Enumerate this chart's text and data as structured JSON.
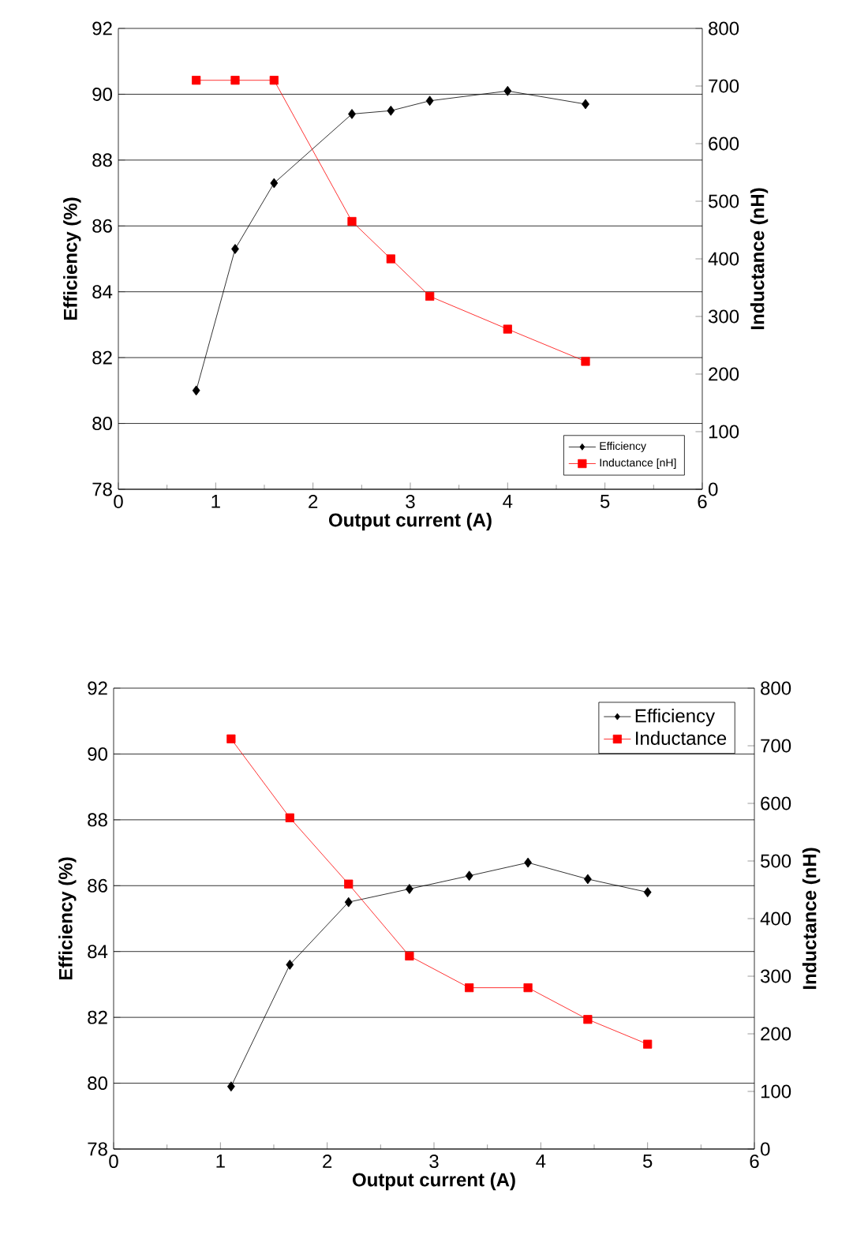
{
  "chart_data": [
    {
      "type": "line",
      "xlabel": "Output current (A)",
      "ylabel": "Efficiency (%)",
      "y2label": "Inductance (nH)",
      "xlim": [
        0,
        6
      ],
      "xticks": [
        0,
        1,
        2,
        3,
        4,
        5,
        6
      ],
      "ylim": [
        78,
        92
      ],
      "yticks": [
        78,
        80,
        82,
        84,
        86,
        88,
        90,
        92
      ],
      "y2lim": [
        0,
        800
      ],
      "y2ticks": [
        0,
        100,
        200,
        300,
        400,
        500,
        600,
        700,
        800
      ],
      "grid": "y",
      "legend": "bottom right",
      "series": [
        {
          "name": "Efficiency",
          "color": "#000000",
          "marker": "diamond",
          "x": [
            0.8,
            1.2,
            1.6,
            2.4,
            2.8,
            3.2,
            4.0,
            4.8
          ],
          "values": [
            81.0,
            85.3,
            87.3,
            89.4,
            89.5,
            89.8,
            90.1,
            89.7
          ]
        },
        {
          "name": "Inductance [nH]",
          "color": "#ff0000",
          "marker": "square",
          "axis": "y2",
          "x": [
            0.8,
            1.2,
            1.6,
            2.4,
            2.8,
            3.2,
            4.0,
            4.8
          ],
          "values": [
            710,
            710,
            710,
            465,
            400,
            335,
            278,
            222
          ]
        }
      ]
    },
    {
      "type": "line",
      "xlabel": "Output current (A)",
      "ylabel": "Efficiency (%)",
      "y2label": "Inductance (nH)",
      "xlim": [
        0,
        6
      ],
      "xticks": [
        0,
        1,
        2,
        3,
        4,
        5,
        6
      ],
      "ylim": [
        78,
        92
      ],
      "yticks": [
        78,
        80,
        82,
        84,
        86,
        88,
        90,
        92
      ],
      "y2lim": [
        0,
        800
      ],
      "y2ticks": [
        0,
        100,
        200,
        300,
        400,
        500,
        600,
        700,
        800
      ],
      "grid": "y",
      "legend": "top right",
      "series": [
        {
          "name": "Efficiency",
          "color": "#000000",
          "marker": "diamond",
          "x": [
            1.1,
            1.65,
            2.2,
            2.77,
            3.33,
            3.88,
            4.44,
            5.0
          ],
          "values": [
            79.9,
            83.6,
            85.5,
            85.9,
            86.3,
            86.7,
            86.2,
            85.8
          ]
        },
        {
          "name": "Inductance",
          "color": "#ff0000",
          "marker": "square",
          "axis": "y2",
          "x": [
            1.1,
            1.65,
            2.2,
            2.77,
            3.33,
            3.88,
            4.44,
            5.0
          ],
          "values": [
            712,
            575,
            460,
            335,
            280,
            280,
            225,
            182
          ]
        }
      ]
    }
  ]
}
